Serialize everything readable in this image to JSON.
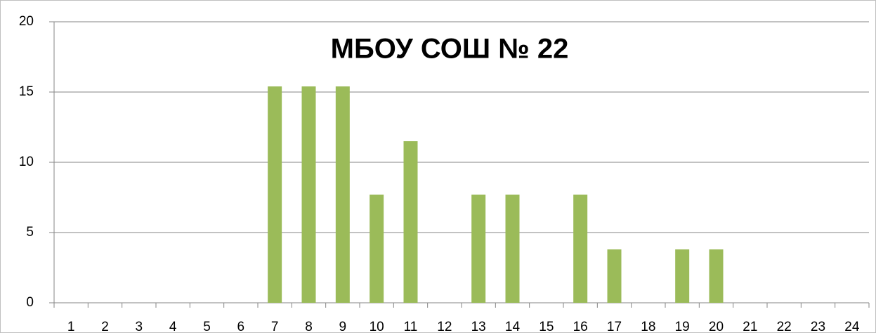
{
  "chart_data": {
    "type": "bar",
    "title": "МБОУ СОШ № 22",
    "categories": [
      "1",
      "2",
      "3",
      "4",
      "5",
      "6",
      "7",
      "8",
      "9",
      "10",
      "11",
      "12",
      "13",
      "14",
      "15",
      "16",
      "17",
      "18",
      "19",
      "20",
      "21",
      "22",
      "23",
      "24"
    ],
    "values": [
      0,
      0,
      0,
      0,
      0,
      0,
      15.4,
      15.4,
      15.4,
      7.7,
      11.5,
      0,
      7.7,
      7.7,
      0,
      7.7,
      3.8,
      0,
      3.8,
      3.8,
      0,
      0,
      0,
      0
    ],
    "color": "#9bbb59",
    "ylim": [
      0,
      20
    ],
    "yticks": [
      0,
      5,
      10,
      15,
      20
    ],
    "grid": true
  }
}
